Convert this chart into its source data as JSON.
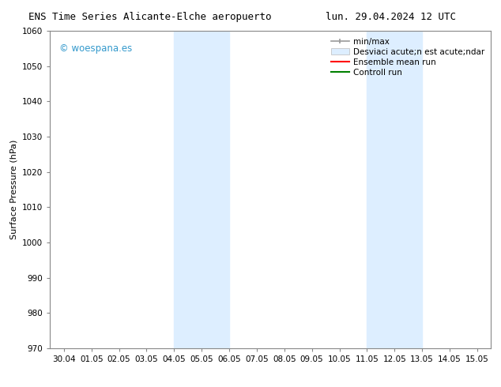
{
  "title_left": "ENS Time Series Alicante-Elche aeropuerto",
  "title_right": "lun. 29.04.2024 12 UTC",
  "ylabel": "Surface Pressure (hPa)",
  "ylim": [
    970,
    1060
  ],
  "yticks": [
    970,
    980,
    990,
    1000,
    1010,
    1020,
    1030,
    1040,
    1050,
    1060
  ],
  "x_labels": [
    "30.04",
    "01.05",
    "02.05",
    "03.05",
    "04.05",
    "05.05",
    "06.05",
    "07.05",
    "08.05",
    "09.05",
    "10.05",
    "11.05",
    "12.05",
    "13.05",
    "14.05",
    "15.05"
  ],
  "x_positions": [
    0,
    1,
    2,
    3,
    4,
    5,
    6,
    7,
    8,
    9,
    10,
    11,
    12,
    13,
    14,
    15
  ],
  "shaded_blocks": [
    {
      "xmin": 4.0,
      "xmax": 6.0
    },
    {
      "xmin": 11.0,
      "xmax": 13.0
    }
  ],
  "shade_color": "#ddeeff",
  "watermark": "© woespana.es",
  "watermark_color": "#3399cc",
  "legend_label_minmax": "min/max",
  "legend_label_std": "Desviaci acute;n est acute;ndar",
  "legend_label_ensemble": "Ensemble mean run",
  "legend_label_control": "Controll run",
  "bg_color": "white",
  "title_fontsize": 9,
  "label_fontsize": 8,
  "tick_fontsize": 7.5,
  "legend_fontsize": 7.5
}
